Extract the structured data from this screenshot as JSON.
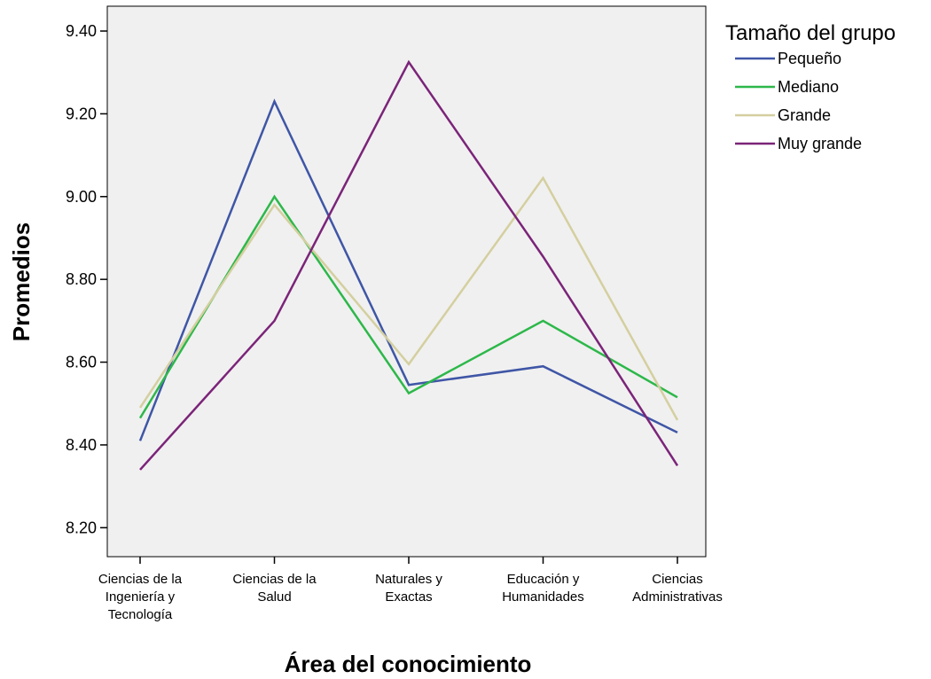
{
  "chart_data": {
    "type": "line",
    "xlabel": "Área del conocimiento",
    "ylabel": "Promedios",
    "ylim": [
      8.13,
      9.46
    ],
    "yticks": [
      8.2,
      8.4,
      8.6,
      8.8,
      9.0,
      9.2,
      9.4
    ],
    "grid": false,
    "legend_title": "Tamaño del grupo",
    "legend_position": "top-right",
    "categories": [
      [
        "Ciencias de la",
        "Ingeniería y",
        "Tecnología"
      ],
      [
        "Ciencias de la",
        "Salud"
      ],
      [
        "Naturales y",
        "Exactas"
      ],
      [
        "Educación y",
        "Humanidades"
      ],
      [
        "Ciencias",
        "Administrativas"
      ]
    ],
    "series": [
      {
        "name": "Pequeño",
        "color": "#3F56A6",
        "values": [
          8.41,
          9.23,
          8.545,
          8.59,
          8.43
        ]
      },
      {
        "name": "Mediano",
        "color": "#2DB84A",
        "values": [
          8.465,
          9.0,
          8.525,
          8.7,
          8.515
        ]
      },
      {
        "name": "Grande",
        "color": "#D4CF9F",
        "values": [
          8.49,
          8.98,
          8.595,
          9.045,
          8.46
        ]
      },
      {
        "name": "Muy grande",
        "color": "#7B2479",
        "values": [
          8.34,
          8.7,
          9.325,
          8.855,
          8.35
        ]
      }
    ]
  }
}
